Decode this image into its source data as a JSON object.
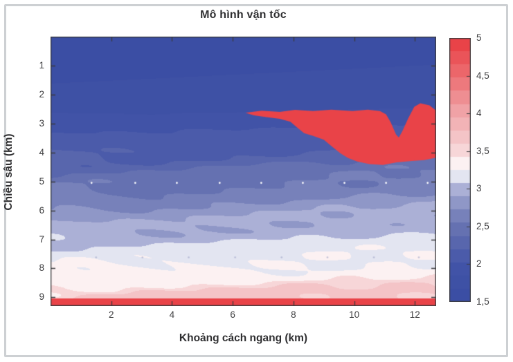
{
  "figure": {
    "title": "Mô hình vận tốc",
    "xlabel": "Khoảng cách ngang (km)",
    "ylabel": "Chiều sâu (km)",
    "x_tick_labels": [
      "2",
      "4",
      "6",
      "8",
      "10",
      "12"
    ],
    "x_tick_values": [
      2,
      4,
      6,
      8,
      10,
      12
    ],
    "y_tick_labels": [
      "1",
      "2",
      "3",
      "4",
      "5",
      "6",
      "7",
      "8",
      "9"
    ],
    "y_tick_values": [
      1,
      2,
      3,
      4,
      5,
      6,
      7,
      8,
      9
    ],
    "colorbar": {
      "min": 1.5,
      "max": 5,
      "tick_labels": [
        "5",
        "4,5",
        "4",
        "3,5",
        "3",
        "2,5",
        "2",
        "1,5"
      ],
      "tick_values": [
        5,
        4.5,
        4,
        3.5,
        3,
        2.5,
        2,
        1.5
      ]
    },
    "axis_color": "#3b3b3d"
  },
  "chart_data": {
    "type": "heatmap",
    "title": "Mô hình vận tốc",
    "xlabel": "Khoảng cách ngang (km)",
    "ylabel": "Chiều sâu (km)",
    "x_range_km": [
      0,
      12.7
    ],
    "depth_range_km": [
      0,
      9.3
    ],
    "value_range_km_s": [
      1.5,
      5
    ],
    "legend_position": "right-colorbar",
    "grid": false,
    "colormap_stops": [
      [
        0.0,
        "#3a4da3"
      ],
      [
        0.14,
        "#4254a7"
      ],
      [
        0.3,
        "#6b76b3"
      ],
      [
        0.42,
        "#a5abd3"
      ],
      [
        0.5,
        "#ffffff"
      ],
      [
        0.58,
        "#f6d3d5"
      ],
      [
        0.72,
        "#f0a4a8"
      ],
      [
        0.86,
        "#ec6b6f"
      ],
      [
        1.0,
        "#e83a40"
      ]
    ],
    "colormap_levels": 20,
    "background_velocity_profile": {
      "depth_km": [
        0,
        2.2,
        3.0,
        4.0,
        5.0,
        6.0,
        7.0,
        7.8,
        8.6,
        9.02
      ],
      "velocity_km_s": [
        1.55,
        1.72,
        1.95,
        2.2,
        2.5,
        2.8,
        3.05,
        3.22,
        3.42,
        3.65
      ]
    },
    "bottom_band": {
      "top_depth_km": 9.03,
      "velocity_km_s": 5
    },
    "salt_body": {
      "velocity_km_s": 5,
      "outline_x_depth_km": [
        [
          6.42,
          2.63
        ],
        [
          6.95,
          2.56
        ],
        [
          7.55,
          2.6
        ],
        [
          8.05,
          2.53
        ],
        [
          8.65,
          2.57
        ],
        [
          9.25,
          2.52
        ],
        [
          9.95,
          2.57
        ],
        [
          10.45,
          2.52
        ],
        [
          10.85,
          2.57
        ],
        [
          11.05,
          2.68
        ],
        [
          11.2,
          2.95
        ],
        [
          11.38,
          3.38
        ],
        [
          11.47,
          3.48
        ],
        [
          11.58,
          3.28
        ],
        [
          11.78,
          2.82
        ],
        [
          11.98,
          2.42
        ],
        [
          12.18,
          2.3
        ],
        [
          12.48,
          2.37
        ],
        [
          12.7,
          2.56
        ],
        [
          12.7,
          4.18
        ],
        [
          12.3,
          4.26
        ],
        [
          11.9,
          4.29
        ],
        [
          11.4,
          4.34
        ],
        [
          10.95,
          4.43
        ],
        [
          10.5,
          4.4
        ],
        [
          10.1,
          4.31
        ],
        [
          9.8,
          4.19
        ],
        [
          9.55,
          4.03
        ],
        [
          9.3,
          3.82
        ],
        [
          9.0,
          3.56
        ],
        [
          8.65,
          3.43
        ],
        [
          8.35,
          3.33
        ],
        [
          8.1,
          3.12
        ],
        [
          7.9,
          2.94
        ],
        [
          7.55,
          2.84
        ],
        [
          7.1,
          2.78
        ],
        [
          6.7,
          2.72
        ]
      ]
    },
    "marker_rows": [
      {
        "depth_km": 5.05,
        "x_km": [
          1.35,
          2.79,
          4.16,
          5.57,
          6.94,
          8.31,
          9.68,
          11.05,
          12.42
        ],
        "color": "#ffffff",
        "opacity": 0.95
      },
      {
        "depth_km": 7.62,
        "x_km": [
          1.5,
          3.03,
          4.55,
          6.08,
          7.61,
          9.12,
          10.65,
          12.13
        ],
        "color": "#9aa0c4",
        "opacity": 0.55
      }
    ]
  }
}
